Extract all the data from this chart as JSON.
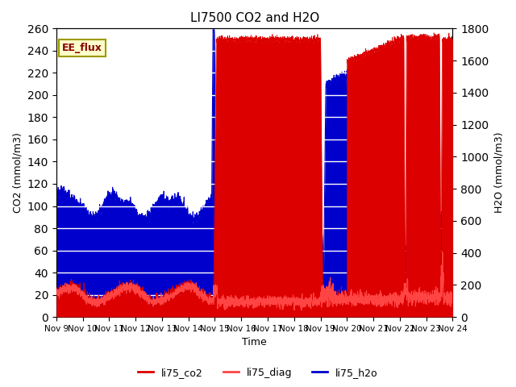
{
  "title": "LI7500 CO2 and H2O",
  "xlabel": "Time",
  "ylabel_left": "CO2 (mmol/m3)",
  "ylabel_right": "H2O (mmol/m3)",
  "ylim_left": [
    0,
    260
  ],
  "ylim_right": [
    0,
    1800
  ],
  "yticks_left": [
    0,
    20,
    40,
    60,
    80,
    100,
    120,
    140,
    160,
    180,
    200,
    220,
    240,
    260
  ],
  "yticks_right": [
    0,
    200,
    400,
    600,
    800,
    1000,
    1200,
    1400,
    1600,
    1800
  ],
  "xtick_labels": [
    "Nov 9",
    "Nov 10",
    "Nov 11",
    "Nov 12",
    "Nov 13",
    "Nov 14",
    "Nov 15",
    "Nov 16",
    "Nov 17",
    "Nov 18",
    "Nov 19",
    "Nov 20",
    "Nov 21",
    "Nov 22",
    "Nov 23",
    "Nov 24"
  ],
  "annotation_text": "EE_flux",
  "annotation_box_color": "#ffffcc",
  "annotation_border_color": "#999900",
  "co2_color": "#dd0000",
  "diag_color": "#ff4444",
  "h2o_color": "#0000cc",
  "background_color": "#e8e8e8",
  "grid_color": "#ffffff",
  "legend_labels": [
    "li75_co2",
    "li75_diag",
    "li75_h2o"
  ],
  "legend_colors": [
    "#dd0000",
    "#ff4444",
    "#0000cc"
  ]
}
